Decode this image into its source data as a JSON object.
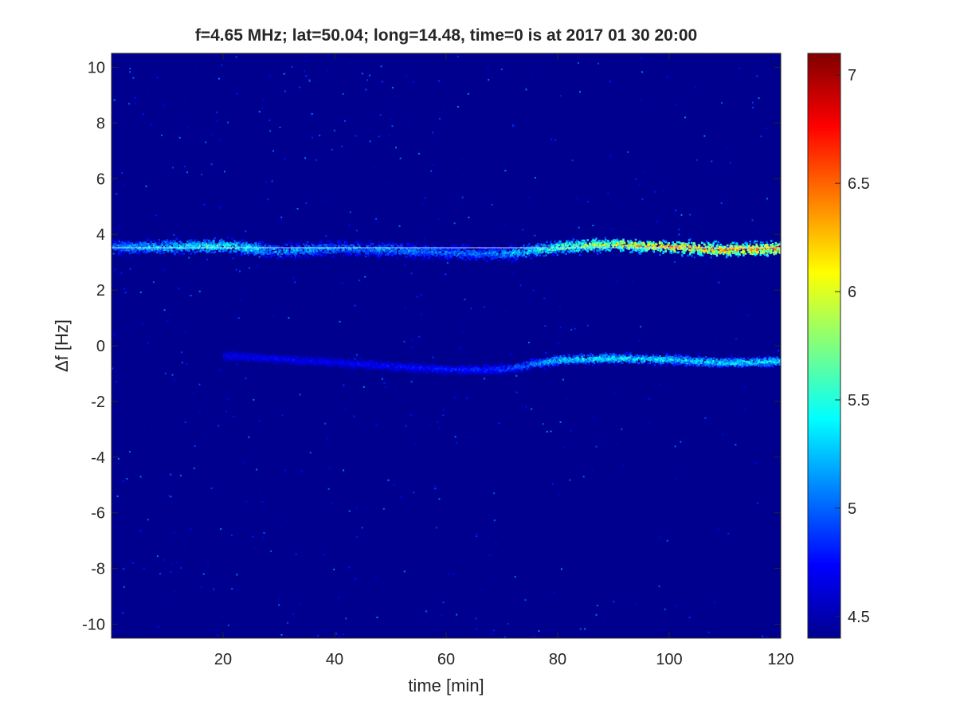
{
  "chart_data": {
    "type": "heatmap",
    "title": "f=4.65 MHz;  lat=50.04; long=14.48, time=0 is at 2017 01 30 20:00",
    "xlabel": "time [min]",
    "ylabel": "Δf [Hz]",
    "xlim": [
      0,
      120
    ],
    "ylim": [
      -10.5,
      10.5
    ],
    "x_ticks": [
      "20",
      "40",
      "60",
      "80",
      "100",
      "120"
    ],
    "x_tick_values": [
      20,
      40,
      60,
      80,
      100,
      120
    ],
    "y_ticks": [
      "10",
      "8",
      "6",
      "4",
      "2",
      "0",
      "-2",
      "-4",
      "-6",
      "-8",
      "-10"
    ],
    "y_tick_values": [
      10,
      8,
      6,
      4,
      2,
      0,
      -2,
      -4,
      -6,
      -8,
      -10
    ],
    "colormap": "jet",
    "background_color": "#00008f",
    "colorbar": {
      "range": [
        4.4,
        7.1
      ],
      "ticks": [
        "7",
        "6.5",
        "6",
        "5.5",
        "5",
        "4.5"
      ],
      "tick_values": [
        7,
        6.5,
        6,
        5.5,
        5,
        4.5
      ]
    },
    "traces": [
      {
        "description": "upper Doppler trace",
        "points": [
          [
            0,
            3.55
          ],
          [
            10,
            3.55
          ],
          [
            20,
            3.6
          ],
          [
            30,
            3.4
          ],
          [
            40,
            3.5
          ],
          [
            50,
            3.45
          ],
          [
            60,
            3.35
          ],
          [
            70,
            3.3
          ],
          [
            80,
            3.55
          ],
          [
            90,
            3.65
          ],
          [
            100,
            3.55
          ],
          [
            110,
            3.45
          ],
          [
            120,
            3.5
          ]
        ],
        "spread_hz": 0.35,
        "intensity": [
          5.3,
          5.6,
          5.8,
          5.4,
          5.3,
          5.3,
          5.2,
          5.3,
          6.0,
          6.4,
          6.7,
          6.8,
          6.8
        ]
      },
      {
        "description": "lower Doppler trace",
        "points": [
          [
            20,
            -0.35
          ],
          [
            40,
            -0.6
          ],
          [
            60,
            -0.85
          ],
          [
            70,
            -0.85
          ],
          [
            80,
            -0.5
          ],
          [
            90,
            -0.45
          ],
          [
            100,
            -0.5
          ],
          [
            110,
            -0.6
          ],
          [
            120,
            -0.55
          ]
        ],
        "spread_hz": 0.25,
        "intensity": [
          4.8,
          4.8,
          4.9,
          5.0,
          5.6,
          5.7,
          5.6,
          5.6,
          5.7
        ]
      }
    ],
    "reference_line_hz": 3.52
  }
}
